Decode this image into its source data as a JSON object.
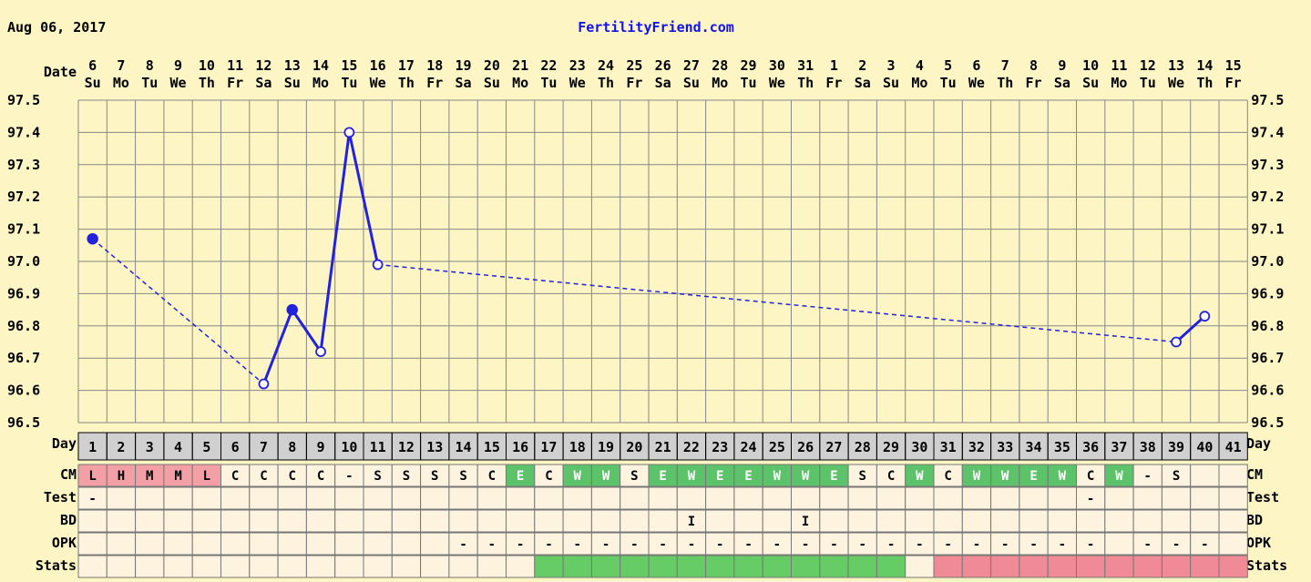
{
  "header": {
    "date": "Aug 06, 2017",
    "site": "FertilityFriend.com"
  },
  "row_labels": {
    "date": "Date",
    "day": "Day",
    "cm": "CM",
    "test": "Test",
    "bd": "BD",
    "opk": "OPK",
    "stats": "Stats"
  },
  "colors": {
    "background": "#fdf5c4",
    "grid": "#888888",
    "line": "#2222dd",
    "day_row_bg": "#d0d0d0",
    "cell_bg": "#fdf3df",
    "menstrual": "#f2a0a6",
    "egg_white": "#5cc36a",
    "stats_green": "#66cc66",
    "stats_pink": "#f08a96"
  },
  "dates": [
    {
      "d": "6",
      "w": "Su"
    },
    {
      "d": "7",
      "w": "Mo"
    },
    {
      "d": "8",
      "w": "Tu"
    },
    {
      "d": "9",
      "w": "We"
    },
    {
      "d": "10",
      "w": "Th"
    },
    {
      "d": "11",
      "w": "Fr"
    },
    {
      "d": "12",
      "w": "Sa"
    },
    {
      "d": "13",
      "w": "Su"
    },
    {
      "d": "14",
      "w": "Mo"
    },
    {
      "d": "15",
      "w": "Tu"
    },
    {
      "d": "16",
      "w": "We"
    },
    {
      "d": "17",
      "w": "Th"
    },
    {
      "d": "18",
      "w": "Fr"
    },
    {
      "d": "19",
      "w": "Sa"
    },
    {
      "d": "20",
      "w": "Su"
    },
    {
      "d": "21",
      "w": "Mo"
    },
    {
      "d": "22",
      "w": "Tu"
    },
    {
      "d": "23",
      "w": "We"
    },
    {
      "d": "24",
      "w": "Th"
    },
    {
      "d": "25",
      "w": "Fr"
    },
    {
      "d": "26",
      "w": "Sa"
    },
    {
      "d": "27",
      "w": "Su"
    },
    {
      "d": "28",
      "w": "Mo"
    },
    {
      "d": "29",
      "w": "Tu"
    },
    {
      "d": "30",
      "w": "We"
    },
    {
      "d": "31",
      "w": "Th"
    },
    {
      "d": "1",
      "w": "Fr"
    },
    {
      "d": "2",
      "w": "Sa"
    },
    {
      "d": "3",
      "w": "Su"
    },
    {
      "d": "4",
      "w": "Mo"
    },
    {
      "d": "5",
      "w": "Tu"
    },
    {
      "d": "6",
      "w": "We"
    },
    {
      "d": "7",
      "w": "Th"
    },
    {
      "d": "8",
      "w": "Fr"
    },
    {
      "d": "9",
      "w": "Sa"
    },
    {
      "d": "10",
      "w": "Su"
    },
    {
      "d": "11",
      "w": "Mo"
    },
    {
      "d": "12",
      "w": "Tu"
    },
    {
      "d": "13",
      "w": "We"
    },
    {
      "d": "14",
      "w": "Th"
    },
    {
      "d": "15",
      "w": "Fr"
    }
  ],
  "chart_data": {
    "type": "line",
    "title": "",
    "xlabel": "Day",
    "ylabel": "",
    "ylim": [
      96.5,
      97.5
    ],
    "yticks": [
      "97.5",
      "97.4",
      "97.3",
      "97.2",
      "97.1",
      "97.0",
      "96.9",
      "96.8",
      "96.7",
      "96.6",
      "96.5"
    ],
    "grid": true,
    "days": [
      1,
      2,
      3,
      4,
      5,
      6,
      7,
      8,
      9,
      10,
      11,
      12,
      13,
      14,
      15,
      16,
      17,
      18,
      19,
      20,
      21,
      22,
      23,
      24,
      25,
      26,
      27,
      28,
      29,
      30,
      31,
      32,
      33,
      34,
      35,
      36,
      37,
      38,
      39,
      40,
      41
    ],
    "temperatures": [
      {
        "day": 1,
        "value": 97.07,
        "marker": "filled"
      },
      {
        "day": 7,
        "value": 96.62,
        "marker": "open"
      },
      {
        "day": 8,
        "value": 96.85,
        "marker": "filled"
      },
      {
        "day": 9,
        "value": 96.72,
        "marker": "open"
      },
      {
        "day": 10,
        "value": 97.4,
        "marker": "open"
      },
      {
        "day": 11,
        "value": 96.99,
        "marker": "open"
      },
      {
        "day": 39,
        "value": 96.75,
        "marker": "open"
      },
      {
        "day": 40,
        "value": 96.83,
        "marker": "open"
      }
    ],
    "cm": [
      "L",
      "H",
      "M",
      "M",
      "L",
      "C",
      "C",
      "C",
      "C",
      "-",
      "S",
      "S",
      "S",
      "S",
      "C",
      "E",
      "C",
      "W",
      "W",
      "S",
      "E",
      "W",
      "E",
      "E",
      "W",
      "W",
      "E",
      "S",
      "C",
      "W",
      "C",
      "W",
      "W",
      "E",
      "W",
      "C",
      "W",
      "-",
      "S",
      "",
      ""
    ],
    "test": [
      "-",
      "",
      "",
      "",
      "",
      "",
      "",
      "",
      "",
      "",
      "",
      "",
      "",
      "",
      "",
      "",
      "",
      "",
      "",
      "",
      "",
      "",
      "",
      "",
      "",
      "",
      "",
      "",
      "",
      "",
      "",
      "",
      "",
      "",
      "",
      "-",
      "",
      "",
      "",
      "",
      ""
    ],
    "bd": [
      "",
      "",
      "",
      "",
      "",
      "",
      "",
      "",
      "",
      "",
      "",
      "",
      "",
      "",
      "",
      "",
      "",
      "",
      "",
      "",
      "",
      "I",
      "",
      "",
      "",
      "I",
      "",
      "",
      "",
      "",
      "",
      "",
      "",
      "",
      "",
      "",
      "",
      "",
      "",
      "",
      ""
    ],
    "opk": [
      "",
      "",
      "",
      "",
      "",
      "",
      "",
      "",
      "",
      "",
      "",
      "",
      "",
      "-",
      "-",
      "-",
      "-",
      "-",
      "-",
      "-",
      "-",
      "-",
      "-",
      "-",
      "-",
      "-",
      "-",
      "-",
      "-",
      "-",
      "-",
      "-",
      "-",
      "-",
      "-",
      "-",
      "",
      "-",
      "-",
      "-",
      ""
    ],
    "stats": [
      "",
      "",
      "",
      "",
      "",
      "",
      "",
      "",
      "",
      "",
      "",
      "",
      "",
      "",
      "",
      "",
      "green",
      "green",
      "green",
      "green",
      "green",
      "green",
      "green",
      "green",
      "green",
      "green",
      "green",
      "green",
      "green",
      "",
      "pink",
      "pink",
      "pink",
      "pink",
      "pink",
      "pink",
      "pink",
      "pink",
      "pink",
      "pink",
      "pink"
    ]
  }
}
